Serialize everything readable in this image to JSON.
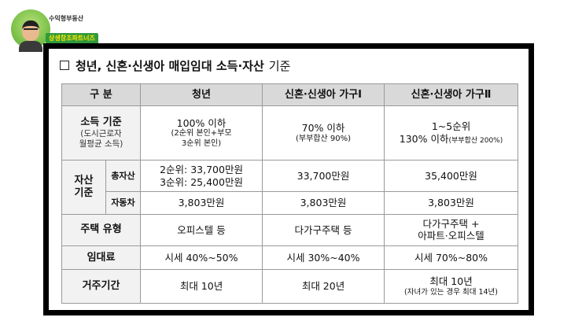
{
  "logo": {
    "line1": "수익형부동산",
    "line2": "상생창조파트너즈"
  },
  "heading": {
    "title": "청년, 신혼·신생아 매입임대 소득·자산",
    "suffix": "기준"
  },
  "table": {
    "headers": [
      "구 분",
      "청년",
      "신혼·신생아 가구Ⅰ",
      "신혼·신생아 가구Ⅱ"
    ],
    "income": {
      "label": "소득 기준",
      "sublabel1": "(도시근로자",
      "sublabel2": "월평균 소득)",
      "youth_main": "100% 이하",
      "youth_note1": "(2순위 본인+부모",
      "youth_note2": "3순위 본인)",
      "newlywed1_main": "70% 이하",
      "newlywed1_note": "(부부합산 90%)",
      "newlywed2_main": "1~5순위",
      "newlywed2_line2": "130% 이하",
      "newlywed2_note": "(부부합산 200%)"
    },
    "assets": {
      "label1": "자산",
      "label2": "기준",
      "total_label": "총자산",
      "youth_total1": "2순위: 33,700만원",
      "youth_total2": "3순위: 25,400만원",
      "newlywed1_total": "33,700만원",
      "newlywed2_total": "35,400만원",
      "car_label": "자동차",
      "youth_car": "3,803만원",
      "newlywed1_car": "3,803만원",
      "newlywed2_car": "3,803만원"
    },
    "housing": {
      "label": "주택 유형",
      "youth": "오피스텔 등",
      "newlywed1": "다가구주택 등",
      "newlywed2_line1": "다가구주택 +",
      "newlywed2_line2": "아파트·오피스텔"
    },
    "rent": {
      "label": "임대료",
      "youth": "시세 40%~50%",
      "newlywed1": "시세 30%~40%",
      "newlywed2": "시세 70%~80%"
    },
    "period": {
      "label": "거주기간",
      "youth": "최대 10년",
      "newlywed1": "최대 20년",
      "newlywed2_line1": "최대 10년",
      "newlywed2_note": "(자녀가 있는 경우 최대 14년)"
    }
  }
}
